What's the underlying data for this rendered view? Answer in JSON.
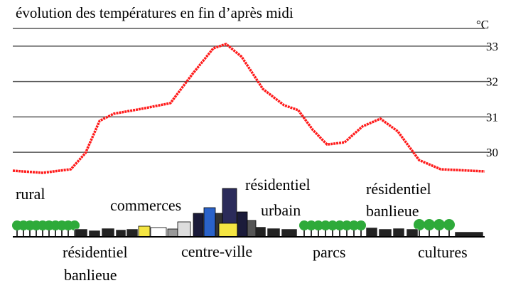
{
  "chart_data": {
    "type": "line",
    "title": "évolution des températures en fin d’après midi",
    "y_unit": "°C",
    "x": [
      0,
      6.3,
      12.3,
      15.4,
      18.4,
      21.4,
      27.4,
      33.4,
      38,
      42.5,
      45.2,
      48.5,
      53,
      57.5,
      60.5,
      63.6,
      66.6,
      70.3,
      74.1,
      77.9,
      81.6,
      86.1,
      90.7,
      100
    ],
    "values": [
      29.48,
      29.42,
      29.52,
      29.98,
      30.89,
      31.09,
      31.23,
      31.39,
      32.2,
      32.94,
      33.06,
      32.7,
      31.79,
      31.33,
      31.19,
      30.63,
      30.22,
      30.28,
      30.73,
      30.95,
      30.59,
      29.78,
      29.52,
      29.46
    ],
    "color": "#ff1a1a",
    "xlim": [
      0,
      100
    ],
    "ylim": [
      29.4,
      33.5
    ],
    "yticks": [
      30,
      31,
      32,
      33
    ],
    "grid": true,
    "zones": [
      [
        "rural"
      ],
      [
        "commerces"
      ],
      [
        "centre-ville"
      ],
      [
        "résidentiel",
        "urbain"
      ],
      [
        "résidentiel",
        "banlieue"
      ],
      [
        "résidentiel",
        "banlieue"
      ],
      [
        "parcs"
      ],
      [
        "cultures"
      ]
    ]
  }
}
